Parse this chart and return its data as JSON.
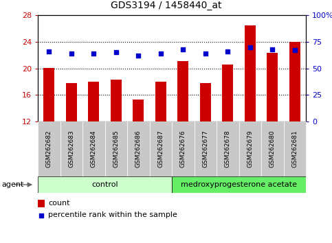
{
  "title": "GDS3194 / 1458440_at",
  "samples": [
    "GSM262682",
    "GSM262683",
    "GSM262684",
    "GSM262685",
    "GSM262686",
    "GSM262687",
    "GSM262676",
    "GSM262677",
    "GSM262678",
    "GSM262679",
    "GSM262680",
    "GSM262681"
  ],
  "count_values": [
    20.1,
    17.8,
    18.0,
    18.3,
    15.3,
    18.0,
    21.1,
    17.8,
    20.6,
    26.5,
    22.3,
    24.0
  ],
  "percentile_values": [
    66,
    64,
    64,
    65,
    62,
    64,
    68,
    64,
    66,
    70,
    68,
    67
  ],
  "ylim_left": [
    12,
    28
  ],
  "ylim_right": [
    0,
    100
  ],
  "yticks_left": [
    12,
    16,
    20,
    24,
    28
  ],
  "yticks_right": [
    0,
    25,
    50,
    75,
    100
  ],
  "ytick_labels_right": [
    "0",
    "25",
    "50",
    "75",
    "100%"
  ],
  "bar_color": "#cc0000",
  "dot_color": "#0000cc",
  "bar_bottom": 12,
  "group1_label": "control",
  "group2_label": "medroxyprogesterone acetate",
  "agent_label": "agent",
  "group1_indices": [
    0,
    1,
    2,
    3,
    4,
    5
  ],
  "group2_indices": [
    6,
    7,
    8,
    9,
    10,
    11
  ],
  "group1_color": "#ccffcc",
  "group2_color": "#66ee66",
  "legend_count_label": "count",
  "legend_pct_label": "percentile rank within the sample",
  "tick_bg_color": "#c8c8c8",
  "plot_bg": "#ffffff",
  "tick_label_color_left": "#cc0000",
  "tick_label_color_right": "#0000cc",
  "figsize": [
    4.83,
    3.54
  ],
  "dpi": 100
}
